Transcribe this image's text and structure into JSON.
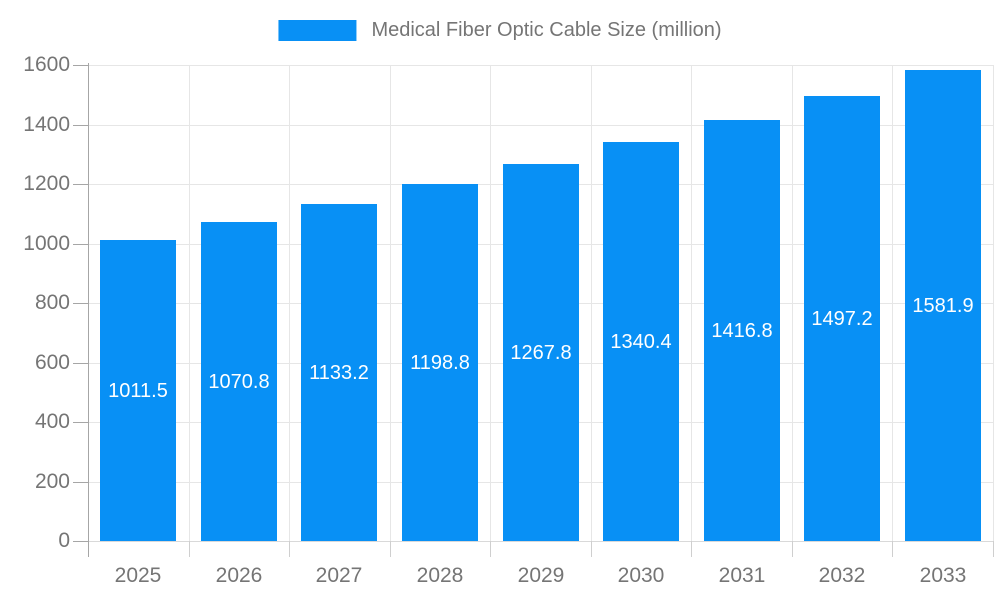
{
  "legend": {
    "label": "Medical Fiber Optic Cable Size (million)"
  },
  "colors": {
    "bar": "#0890f5",
    "grid": "#e6e6e6",
    "axis": "#a6a6a6",
    "tick_label": "#757575",
    "bar_label": "#ffffff"
  },
  "chart_data": {
    "type": "bar",
    "title": "Medical Fiber Optic Cable Size (million)",
    "categories": [
      "2025",
      "2026",
      "2027",
      "2028",
      "2029",
      "2030",
      "2031",
      "2032",
      "2033"
    ],
    "values": [
      1011.5,
      1070.8,
      1133.2,
      1198.8,
      1267.8,
      1340.4,
      1416.8,
      1497.2,
      1581.9
    ],
    "xlabel": "",
    "ylabel": "",
    "ylim": [
      0,
      1600
    ],
    "ytick_step": 200,
    "ytick_labels": [
      "0",
      "200",
      "400",
      "600",
      "800",
      "1000",
      "1200",
      "1400",
      "1600"
    ],
    "grid": true,
    "legend_position": "top-center",
    "value_label_position": "inside-center",
    "value_label_format": "1 decimal"
  }
}
